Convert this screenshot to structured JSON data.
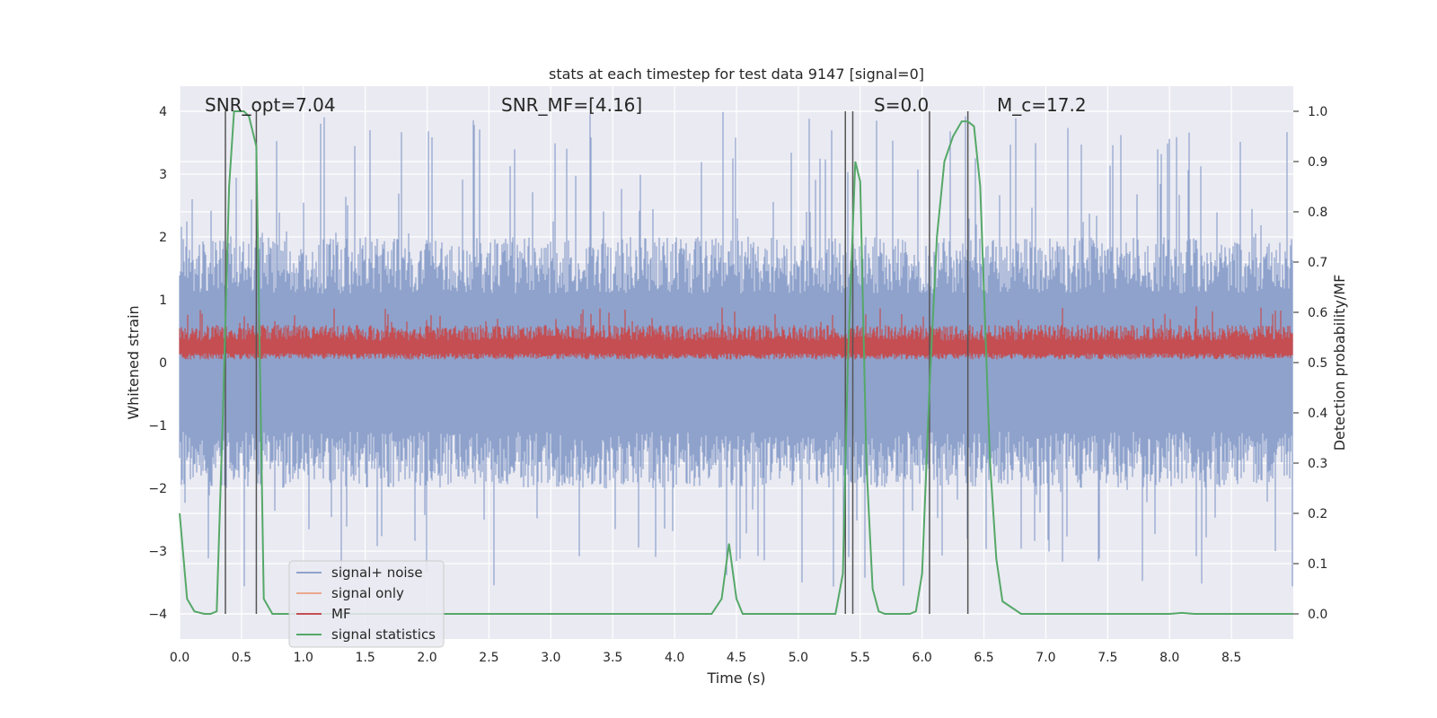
{
  "chart_data": {
    "type": "line",
    "title": "stats at each timestep for test data 9147 [signal=0]",
    "xlabel": "Time (s)",
    "ylabel_left": "Whitened strain",
    "ylabel_right": "Detection probability/MF",
    "xlim": [
      0.0,
      9.0
    ],
    "ylim_left": [
      -4.4,
      4.4
    ],
    "ylim_right": [
      -0.05,
      1.05
    ],
    "x_ticks": [
      0.0,
      0.5,
      1.0,
      1.5,
      2.0,
      2.5,
      3.0,
      3.5,
      4.0,
      4.5,
      5.0,
      5.5,
      6.0,
      6.5,
      7.0,
      7.5,
      8.0,
      8.5
    ],
    "x_tick_labels": [
      "0.0",
      "0.5",
      "1.0",
      "1.5",
      "2.0",
      "2.5",
      "3.0",
      "3.5",
      "4.0",
      "4.5",
      "5.0",
      "5.5",
      "6.0",
      "6.5",
      "7.0",
      "7.5",
      "8.0",
      "8.5"
    ],
    "y_left_ticks": [
      -4,
      -3,
      -2,
      -1,
      0,
      1,
      2,
      3,
      4
    ],
    "y_left_tick_labels": [
      "−4",
      "−3",
      "−2",
      "−1",
      "0",
      "1",
      "2",
      "3",
      "4"
    ],
    "y_right_ticks": [
      0.0,
      0.1,
      0.2,
      0.3,
      0.4,
      0.5,
      0.6,
      0.7,
      0.8,
      0.9,
      1.0
    ],
    "y_right_tick_labels": [
      "0.0",
      "0.1",
      "0.2",
      "0.3",
      "0.4",
      "0.5",
      "0.6",
      "0.7",
      "0.8",
      "0.9",
      "1.0"
    ],
    "grid": true,
    "legend_position": "lower-left",
    "annotations": [
      {
        "text": "SNR_opt=7.04",
        "x": 0.2,
        "y": 4.1
      },
      {
        "text": "SNR_MF=[4.16]",
        "x": 2.6,
        "y": 4.1
      },
      {
        "text": "S=0.0",
        "x": 5.6,
        "y": 4.1
      },
      {
        "text": "M_c=17.2",
        "x": 6.6,
        "y": 4.1
      }
    ],
    "vertical_line_pairs": [
      [
        0.37,
        0.62
      ],
      [
        5.38,
        5.44
      ],
      [
        6.06,
        6.37
      ]
    ],
    "series": [
      {
        "name": "signal+ noise",
        "color": "#8ea2cc",
        "axis": "left",
        "kind": "noise",
        "envelope_pos": 2.0,
        "envelope_neg": -2.0,
        "peak": 4.0,
        "trough": -3.6
      },
      {
        "name": "signal only",
        "color": "#e8a98c",
        "axis": "left",
        "kind": "flat",
        "values": []
      },
      {
        "name": "MF",
        "color": "#c44e52",
        "axis": "left",
        "kind": "noise",
        "band_low": 0.05,
        "band_high": 0.6,
        "peak": 0.9
      },
      {
        "name": "signal statistics",
        "color": "#55a868",
        "axis": "right",
        "x": [
          0.0,
          0.06,
          0.12,
          0.2,
          0.25,
          0.3,
          0.35,
          0.4,
          0.44,
          0.47,
          0.52,
          0.56,
          0.62,
          0.68,
          0.75,
          0.8,
          4.2,
          4.3,
          4.38,
          4.44,
          4.5,
          4.55,
          4.65,
          5.3,
          5.36,
          5.4,
          5.46,
          5.5,
          5.55,
          5.6,
          5.65,
          5.7,
          5.9,
          5.95,
          6.0,
          6.06,
          6.12,
          6.18,
          6.25,
          6.32,
          6.37,
          6.42,
          6.47,
          6.55,
          6.6,
          6.65,
          6.8,
          7.5,
          8.0,
          8.1,
          8.2,
          9.0
        ],
        "y": [
          0.2,
          0.03,
          0.005,
          0.0,
          0.0,
          0.005,
          0.4,
          0.85,
          1.0,
          1.0,
          1.0,
          0.99,
          0.93,
          0.03,
          0.0,
          0.0,
          0.0,
          0.0,
          0.03,
          0.14,
          0.03,
          0.0,
          0.0,
          0.0,
          0.08,
          0.5,
          0.9,
          0.86,
          0.3,
          0.05,
          0.005,
          0.0,
          0.0,
          0.005,
          0.08,
          0.45,
          0.75,
          0.9,
          0.95,
          0.98,
          0.98,
          0.97,
          0.85,
          0.3,
          0.11,
          0.025,
          0.0,
          0.0,
          0.0,
          0.002,
          0.0,
          0.0
        ]
      }
    ]
  }
}
